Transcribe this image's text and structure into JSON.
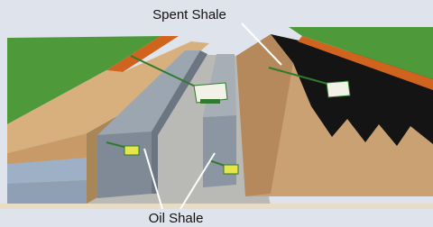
{
  "labels": {
    "top": "Spent Shale",
    "bottom": "Oil Shale"
  }
}
